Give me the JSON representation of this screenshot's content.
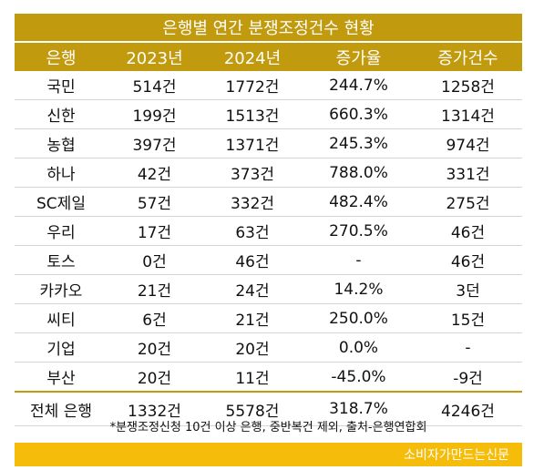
{
  "title": "은행별 연간 분쟁조정건수 현황",
  "headers": [
    "은행",
    "2023년",
    "2024년",
    "증가율",
    "증가건수"
  ],
  "rows": [
    [
      "국민",
      "514건",
      "1772건",
      "244.7%",
      "1258건"
    ],
    [
      "신한",
      "199건",
      "1513건",
      "660.3%",
      "1314건"
    ],
    [
      "농협",
      "397건",
      "1371건",
      "245.3%",
      "974건"
    ],
    [
      "하나",
      "42건",
      "373건",
      "788.0%",
      "331건"
    ],
    [
      "SC제일",
      "57건",
      "332건",
      "482.4%",
      "275건"
    ],
    [
      "우리",
      "17건",
      "63건",
      "270.5%",
      "46건"
    ],
    [
      "토스",
      "0건",
      "46건",
      "-",
      "46건"
    ],
    [
      "카카오",
      "21건",
      "24건",
      "14.2%",
      "3던"
    ],
    [
      "씨티",
      "6건",
      "21건",
      "250.0%",
      "15건"
    ],
    [
      "기업",
      "20건",
      "20건",
      "0.0%",
      "-"
    ],
    [
      "부산",
      "20건",
      "11건",
      "-45.0%",
      "-9건"
    ]
  ],
  "total": [
    "전체 은행",
    "1332건",
    "5578건",
    "318.7%",
    "4246건"
  ],
  "note": "*분쟁조정신청 10건 이상 은행, 중반복건 제외, 출처-은행연합회",
  "footer": "소비자가만드는신문",
  "colors": {
    "header": "#c19a0e",
    "footer": "#f5bd0a"
  }
}
